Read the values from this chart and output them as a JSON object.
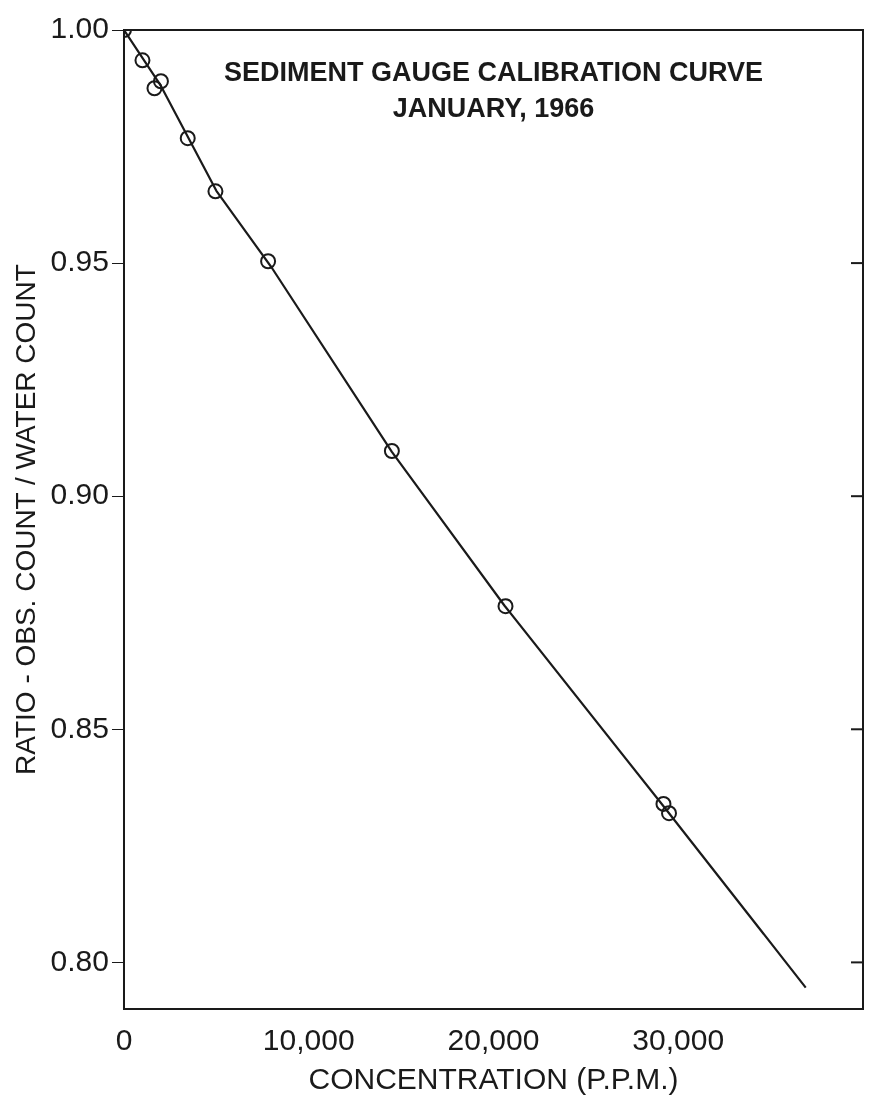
{
  "chart_data": {
    "type": "scatter",
    "title": "SEDIMENT GAUGE CALIBRATION CURVE",
    "subtitle": "JANUARY, 1966",
    "xlabel": "CONCENTRATION (P.P.M.)",
    "ylabel": "RATIO - OBS. COUNT / WATER COUNT",
    "series": [
      {
        "color": "#1a1a1a",
        "marker": "circle",
        "x": [
          0,
          1000,
          2000,
          1650,
          3450,
          4950,
          7800,
          14500,
          20650,
          29200,
          29500
        ],
        "values": [
          1.0,
          0.9935,
          0.989,
          0.9875,
          0.9768,
          0.9654,
          0.9504,
          0.9097,
          0.8764,
          0.834,
          0.832
        ]
      },
      {
        "type": "line",
        "color": "#1a1a1a",
        "marker": "none",
        "line_style": "solid",
        "x": [
          0,
          2000,
          5000,
          8000,
          14500,
          20600,
          29300,
          36900
        ],
        "values": [
          1.0,
          0.988,
          0.9655,
          0.949,
          0.9095,
          0.8765,
          0.833,
          0.7946
        ]
      }
    ],
    "xlim": [
      0,
      40000
    ],
    "xticks": [
      0,
      {
        "value": 10000,
        "label": "10,000"
      },
      {
        "value": 20000,
        "label": "20,000"
      },
      {
        "value": 30000,
        "label": "30,000"
      }
    ],
    "ylim": [
      0.79,
      1.0
    ],
    "yticks": [
      {
        "value": 0.8,
        "label": "0.80"
      },
      {
        "value": 0.85,
        "label": "0.85"
      },
      {
        "value": 0.9,
        "label": "0.90"
      },
      {
        "value": 0.95,
        "label": "0.95"
      },
      {
        "value": 1.0,
        "label": "1.00"
      }
    ],
    "grid": false,
    "legend": false
  }
}
